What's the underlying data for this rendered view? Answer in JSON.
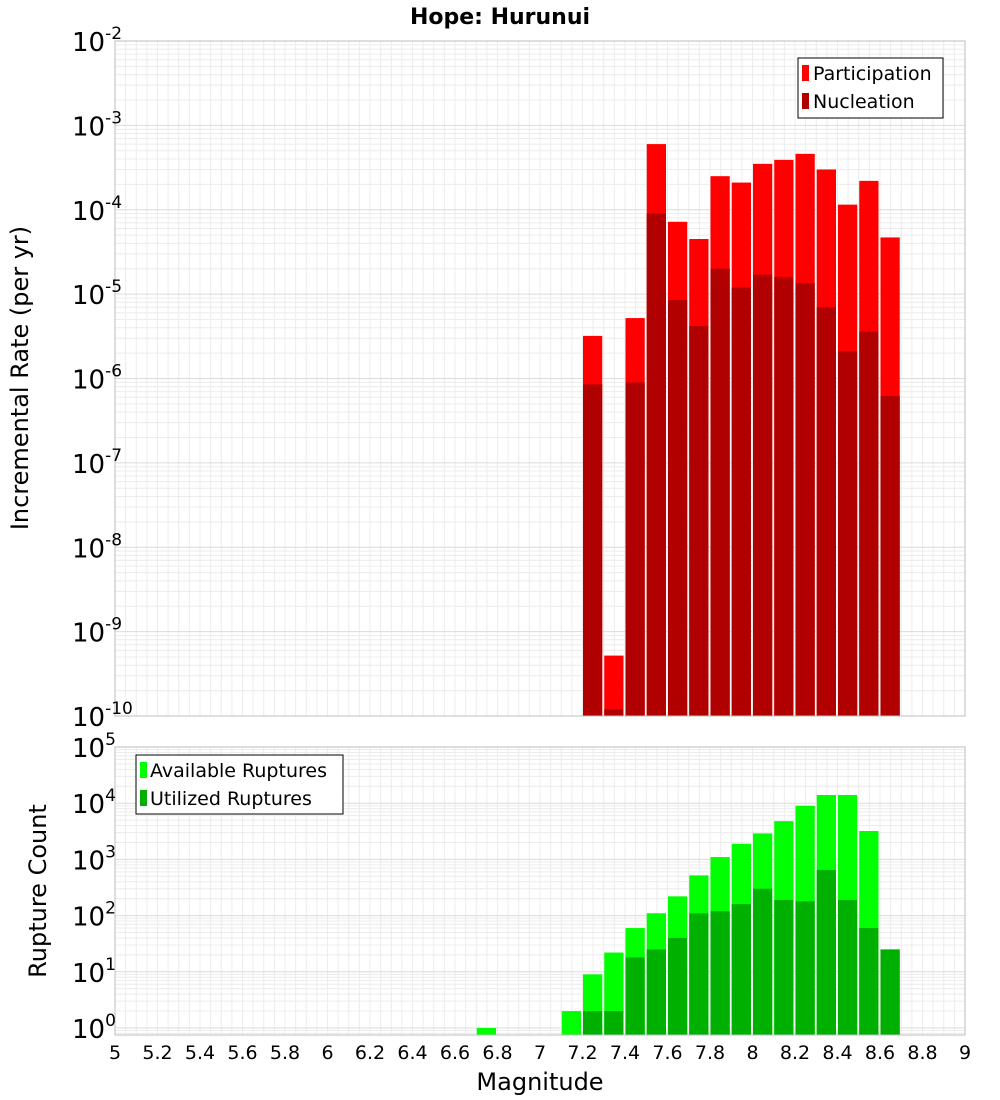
{
  "title": "Hope: Hurunui",
  "chart_data": [
    {
      "type": "bar",
      "panel": "top",
      "ylabel": "Incremental Rate (per yr)",
      "xlabel": "",
      "yscale": "log",
      "ylim": [
        1e-10,
        0.01
      ],
      "xlim": [
        5,
        9
      ],
      "bar_width": 0.1,
      "y_ticks": [
        {
          "base": "10",
          "exp": "-10",
          "value": 1e-10
        },
        {
          "base": "10",
          "exp": "-9",
          "value": 1e-09
        },
        {
          "base": "10",
          "exp": "-8",
          "value": 1e-08
        },
        {
          "base": "10",
          "exp": "-7",
          "value": 1e-07
        },
        {
          "base": "10",
          "exp": "-6",
          "value": 1e-06
        },
        {
          "base": "10",
          "exp": "-5",
          "value": 1e-05
        },
        {
          "base": "10",
          "exp": "-4",
          "value": 0.0001
        },
        {
          "base": "10",
          "exp": "-3",
          "value": 0.001
        },
        {
          "base": "10",
          "exp": "-2",
          "value": 0.01
        }
      ],
      "legend": {
        "position": "top-right",
        "entries": [
          {
            "name": "Participation",
            "color": "#ff0000"
          },
          {
            "name": "Nucleation",
            "color": "#b00000"
          }
        ]
      },
      "x": [
        7.25,
        7.35,
        7.45,
        7.55,
        7.65,
        7.75,
        7.85,
        7.95,
        8.05,
        8.15,
        8.25,
        8.35,
        8.45,
        8.55,
        8.65
      ],
      "series": [
        {
          "name": "Participation",
          "color": "#ff0000",
          "values": [
            3.2e-06,
            5.2e-10,
            5.2e-06,
            0.0006,
            7.2e-05,
            4.5e-05,
            0.00025,
            0.00021,
            0.00035,
            0.00039,
            0.00046,
            0.0003,
            0.000115,
            0.00022,
            4.7e-05
          ]
        },
        {
          "name": "Nucleation",
          "color": "#b00000",
          "values": [
            8.5e-07,
            1.2e-10,
            9e-07,
            9e-05,
            8.5e-06,
            4.2e-06,
            2e-05,
            1.2e-05,
            1.7e-05,
            1.6e-05,
            1.35e-05,
            7e-06,
            2.1e-06,
            3.6e-06,
            6.2e-07
          ]
        }
      ]
    },
    {
      "type": "bar",
      "panel": "bottom",
      "ylabel": "Rupture Count",
      "xlabel": "Magnitude",
      "yscale": "log",
      "ylim": [
        0.75,
        100000.0
      ],
      "xlim": [
        5,
        9
      ],
      "bar_width": 0.1,
      "x_tick_labels": [
        "5",
        "5.2",
        "5.4",
        "5.6",
        "5.8",
        "6",
        "6.2",
        "6.4",
        "6.6",
        "6.8",
        "7",
        "7.2",
        "7.4",
        "7.6",
        "7.8",
        "8",
        "8.2",
        "8.4",
        "8.6",
        "8.8",
        "9"
      ],
      "y_ticks": [
        {
          "base": "10",
          "exp": "0",
          "value": 1
        },
        {
          "base": "10",
          "exp": "1",
          "value": 10
        },
        {
          "base": "10",
          "exp": "2",
          "value": 100
        },
        {
          "base": "10",
          "exp": "3",
          "value": 1000
        },
        {
          "base": "10",
          "exp": "4",
          "value": 10000
        },
        {
          "base": "10",
          "exp": "5",
          "value": 100000
        }
      ],
      "legend": {
        "position": "top-left",
        "entries": [
          {
            "name": "Available Ruptures",
            "color": "#00ff00"
          },
          {
            "name": "Utilized Ruptures",
            "color": "#00b000"
          }
        ]
      },
      "x": [
        6.75,
        7.15,
        7.25,
        7.35,
        7.45,
        7.55,
        7.65,
        7.75,
        7.85,
        7.95,
        8.05,
        8.15,
        8.25,
        8.35,
        8.45,
        8.55,
        8.65
      ],
      "series": [
        {
          "name": "Available Ruptures",
          "color": "#00ff00",
          "values": [
            1,
            2,
            9,
            22,
            60,
            110,
            220,
            520,
            1100,
            1900,
            2900,
            4800,
            9000,
            14000,
            14000,
            3200,
            25
          ]
        },
        {
          "name": "Utilized Ruptures",
          "color": "#00b000",
          "values": [
            0,
            0,
            2,
            2,
            18,
            25,
            40,
            110,
            120,
            160,
            300,
            190,
            180,
            650,
            190,
            60,
            25
          ]
        }
      ]
    }
  ]
}
